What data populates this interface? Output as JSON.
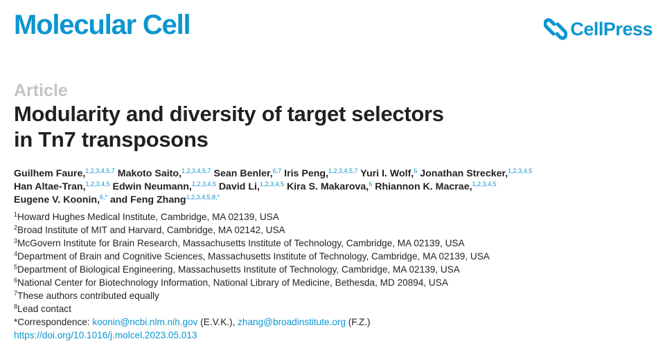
{
  "header": {
    "journal": "Molecular Cell",
    "publisher": "CellPress",
    "brand_color": "#0b96d0"
  },
  "article_type": "Article",
  "title_lines": [
    "Modularity and diversity of target selectors",
    "in Tn7 transposons"
  ],
  "authors": [
    {
      "name": "Guilhem Faure,",
      "sup": "1,2,3,4,5,7"
    },
    {
      "name": "Makoto Saito,",
      "sup": "1,2,3,4,5,7"
    },
    {
      "name": "Sean Benler,",
      "sup": "6,7"
    },
    {
      "name": "Iris Peng,",
      "sup": "1,2,3,4,5,7"
    },
    {
      "name": "Yuri I. Wolf,",
      "sup": "6"
    },
    {
      "name": "Jonathan Strecker,",
      "sup": "1,2,3,4,5"
    },
    {
      "name": "Han Altae-Tran,",
      "sup": "1,2,3,4,5"
    },
    {
      "name": "Edwin Neumann,",
      "sup": "1,2,3,4,5"
    },
    {
      "name": "David Li,",
      "sup": "1,2,3,4,5"
    },
    {
      "name": "Kira S. Makarova,",
      "sup": "6"
    },
    {
      "name": "Rhiannon K. Macrae,",
      "sup": "1,2,3,4,5"
    },
    {
      "name": "Eugene V. Koonin,",
      "sup": "6,*"
    },
    {
      "name": "and Feng Zhang",
      "sup": "1,2,3,4,5,8,*"
    }
  ],
  "affiliations": [
    {
      "num": "1",
      "text": "Howard Hughes Medical Institute, Cambridge, MA 02139, USA"
    },
    {
      "num": "2",
      "text": "Broad Institute of MIT and Harvard, Cambridge, MA 02142, USA"
    },
    {
      "num": "3",
      "text": "McGovern Institute for Brain Research, Massachusetts Institute of Technology, Cambridge, MA 02139, USA"
    },
    {
      "num": "4",
      "text": "Department of Brain and Cognitive Sciences, Massachusetts Institute of Technology, Cambridge, MA 02139, USA"
    },
    {
      "num": "5",
      "text": "Department of Biological Engineering, Massachusetts Institute of Technology, Cambridge, MA 02139, USA"
    },
    {
      "num": "6",
      "text": "National Center for Biotechnology Information, National Library of Medicine, Bethesda, MD 20894, USA"
    },
    {
      "num": "7",
      "text": "These authors contributed equally"
    },
    {
      "num": "8",
      "text": "Lead contact"
    }
  ],
  "correspondence": {
    "label": "*Correspondence: ",
    "email1": "koonin@ncbi.nlm.nih.gov",
    "initials1": " (E.V.K.), ",
    "email2": "zhang@broadinstitute.org",
    "initials2": " (F.Z.)"
  },
  "doi": "https://doi.org/10.1016/j.molcel.2023.05.013"
}
